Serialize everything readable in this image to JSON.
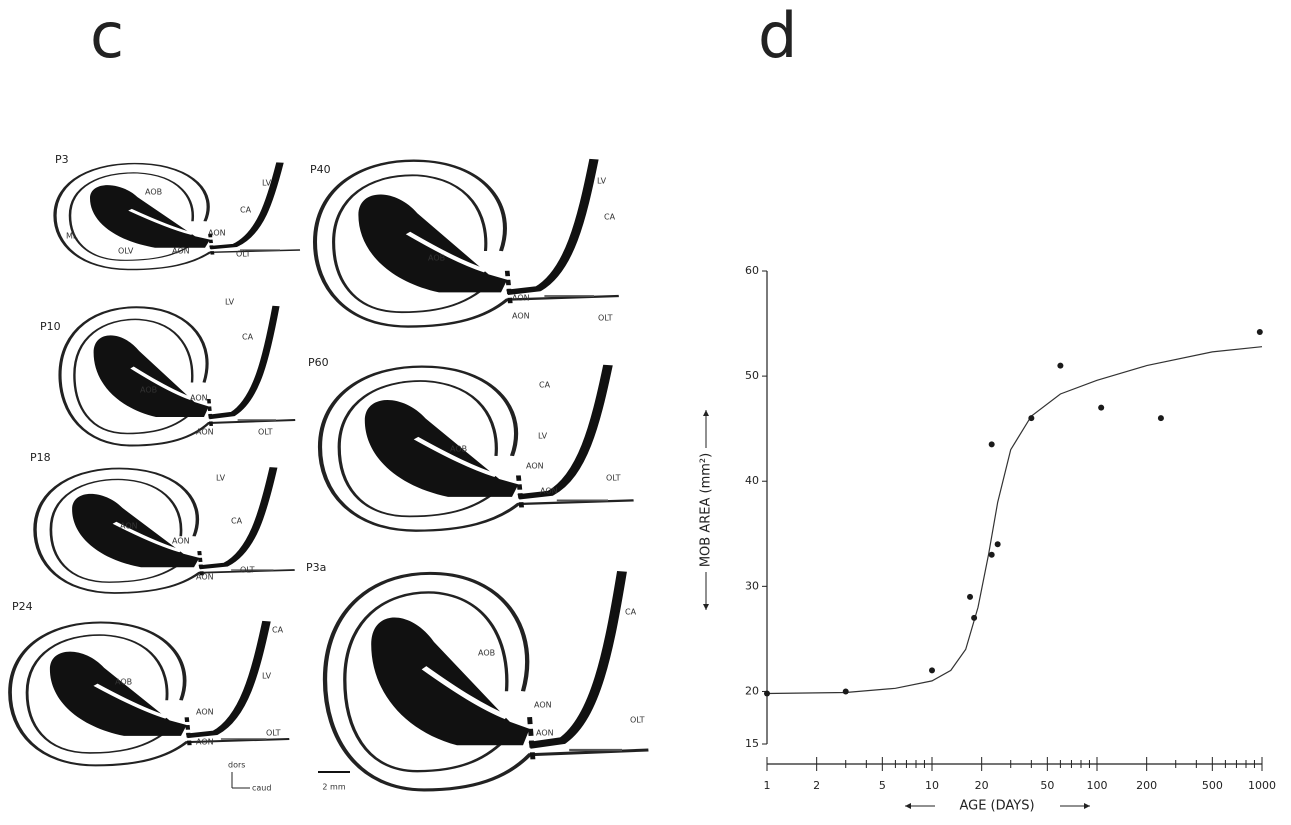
{
  "panel_c": {
    "label": "c",
    "sections": [
      {
        "name": "P3",
        "labels": [
          "AOB",
          "LV",
          "CA",
          "AON",
          "ML",
          "OLV",
          "AON",
          "OLT"
        ]
      },
      {
        "name": "P10",
        "labels": [
          "LV",
          "CA",
          "AOB",
          "AON",
          "AON",
          "OLT"
        ]
      },
      {
        "name": "P18",
        "labels": [
          "LV",
          "CA",
          "AON",
          "AON",
          "AON",
          "OLT"
        ]
      },
      {
        "name": "P24",
        "labels": [
          "CA",
          "AOB",
          "LV",
          "AON",
          "AON",
          "OLT"
        ]
      },
      {
        "name": "P40",
        "labels": [
          "LV",
          "CA",
          "AOB",
          "AON",
          "AON",
          "OLT"
        ]
      },
      {
        "name": "P60",
        "labels": [
          "CA",
          "LV",
          "AOB",
          "AON",
          "AON",
          "OLT"
        ]
      },
      {
        "name": "P3a",
        "labels": [
          "CA",
          "AOB",
          "AON",
          "AON",
          "OLT"
        ]
      }
    ],
    "orientation": {
      "dorsal": "dors",
      "caudal": "caud"
    },
    "scale_bar": "2 mm"
  },
  "chart_data": {
    "type": "scatter",
    "panel_label": "d",
    "xlabel": "AGE (DAYS)",
    "ylabel": "MOB AREA (mm²)",
    "x": [
      1,
      3,
      10,
      17,
      18,
      23,
      23,
      25,
      40,
      60,
      106,
      244,
      970
    ],
    "y": [
      19.8,
      20,
      22,
      29,
      27,
      33,
      43.5,
      34,
      46,
      51,
      47,
      46,
      54.2
    ],
    "fit": {
      "x": [
        1,
        3,
        6,
        10,
        13,
        16,
        19,
        22,
        25,
        30,
        40,
        60,
        100,
        200,
        500,
        1000
      ],
      "y": [
        19.8,
        19.9,
        20.3,
        21,
        22,
        24,
        28,
        33,
        38,
        43,
        46.2,
        48.3,
        49.6,
        51,
        52.3,
        52.8
      ]
    },
    "xscale": "log",
    "xlim": [
      1,
      1000
    ],
    "xticks": [
      1,
      2,
      5,
      10,
      20,
      50,
      100,
      200,
      500,
      1000
    ],
    "xminorticks": [
      3,
      4,
      6,
      7,
      8,
      9,
      30,
      40,
      60,
      70,
      80,
      90,
      300,
      400,
      600,
      700,
      800,
      900
    ],
    "ylim": [
      15,
      60
    ],
    "yticks": [
      15,
      20,
      30,
      40,
      50,
      60
    ],
    "color": "#1a1a1a"
  }
}
